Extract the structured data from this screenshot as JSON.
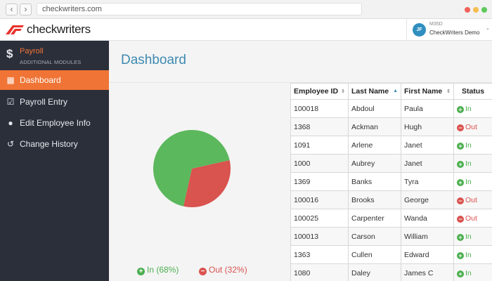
{
  "browser": {
    "url": "checkwriters.com",
    "back_icon": "chevron-left",
    "forward_icon": "chevron-right"
  },
  "header": {
    "logo_text": "checkwriters",
    "brand_color": "#e8322c",
    "user": {
      "initials": "JF",
      "org": "M35D",
      "company": "CheckWriters Demo",
      "chevron": "⌄"
    }
  },
  "sidebar": {
    "module": {
      "icon": "$",
      "label": "Payroll",
      "sublabel": "ADDITIONAL MODULES"
    },
    "items": [
      {
        "label": "Dashboard",
        "icon": "grid-icon",
        "glyph": "▦",
        "active": true
      },
      {
        "label": "Payroll Entry",
        "icon": "check-square-icon",
        "glyph": "☑",
        "active": false
      },
      {
        "label": "Edit Employee Info",
        "icon": "user-icon",
        "glyph": "●",
        "active": false
      },
      {
        "label": "Change History",
        "icon": "history-icon",
        "glyph": "↺",
        "active": false
      }
    ],
    "accent_color": "#f07435"
  },
  "main": {
    "title": "Dashboard",
    "legend": {
      "in_label": "In (68%)",
      "out_label": "Out (32%)",
      "in_glyph": "+",
      "out_glyph": "−"
    }
  },
  "chart_data": {
    "type": "pie",
    "slices": [
      {
        "label": "In",
        "value": 68,
        "color": "#5cb85c"
      },
      {
        "label": "Out",
        "value": 32,
        "color": "#d9534f"
      }
    ]
  },
  "table": {
    "columns": [
      {
        "label": "Employee ID",
        "sort": "none"
      },
      {
        "label": "Last Name",
        "sort": "asc"
      },
      {
        "label": "First Name",
        "sort": "none"
      },
      {
        "label": "Status",
        "sort": "none"
      }
    ],
    "sort_glyphs": {
      "none": "⇕",
      "asc": "▲"
    },
    "rows": [
      {
        "id": "100018",
        "last": "Abdoul",
        "first": "Paula",
        "status": "In"
      },
      {
        "id": "1368",
        "last": "Ackman",
        "first": "Hugh",
        "status": "Out"
      },
      {
        "id": "1091",
        "last": "Arlene",
        "first": "Janet",
        "status": "In"
      },
      {
        "id": "1000",
        "last": "Aubrey",
        "first": "Janet",
        "status": "In"
      },
      {
        "id": "1369",
        "last": "Banks",
        "first": "Tyra",
        "status": "In"
      },
      {
        "id": "100016",
        "last": "Brooks",
        "first": "George",
        "status": "Out"
      },
      {
        "id": "100025",
        "last": "Carpenter",
        "first": "Wanda",
        "status": "Out"
      },
      {
        "id": "100013",
        "last": "Carson",
        "first": "William",
        "status": "In"
      },
      {
        "id": "1363",
        "last": "Cullen",
        "first": "Edward",
        "status": "In"
      },
      {
        "id": "1080",
        "last": "Daley",
        "first": "James C",
        "status": "In"
      }
    ]
  }
}
